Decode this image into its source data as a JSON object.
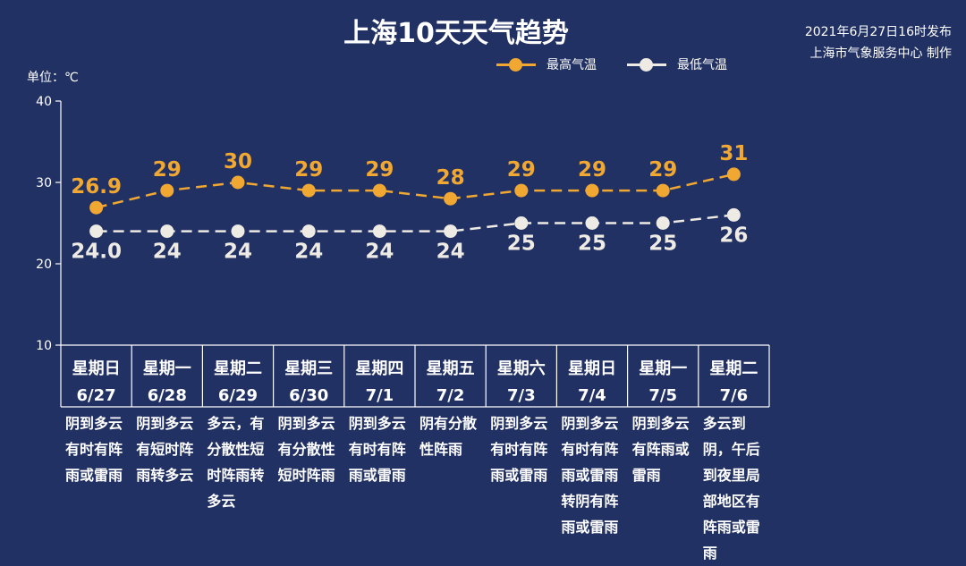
{
  "title": "上海10天天气趋势",
  "issue_time": "2021年6月27日16时发布",
  "issuer": "上海市气象服务中心 制作",
  "unit_label": "单位：℃",
  "colors": {
    "background": "#223163",
    "high": "#f0a832",
    "low": "#eeeae4",
    "axis": "#ffffff"
  },
  "days": [
    {
      "weekday": "星期日",
      "date": "6/27",
      "desc": "阴到多云有时有阵雨或雷雨"
    },
    {
      "weekday": "星期一",
      "date": "6/28",
      "desc": "阴到多云有短时阵雨转多云"
    },
    {
      "weekday": "星期二",
      "date": "6/29",
      "desc": "多云，有分散性短时阵雨转多云"
    },
    {
      "weekday": "星期三",
      "date": "6/30",
      "desc": "阴到多云有分散性短时阵雨"
    },
    {
      "weekday": "星期四",
      "date": "7/1",
      "desc": "阴到多云有时有阵雨或雷雨"
    },
    {
      "weekday": "星期五",
      "date": "7/2",
      "desc": "阴有分散性阵雨"
    },
    {
      "weekday": "星期六",
      "date": "7/3",
      "desc": "阴到多云有时有阵雨或雷雨"
    },
    {
      "weekday": "星期日",
      "date": "7/4",
      "desc": "阴到多云有时有阵雨或雷雨转阴有阵雨或雷雨"
    },
    {
      "weekday": "星期一",
      "date": "7/5",
      "desc": "阴到多云有阵雨或雷雨"
    },
    {
      "weekday": "星期二",
      "date": "7/6",
      "desc": "多云到阴，午后到夜里局部地区有阵雨或雷雨"
    }
  ],
  "chart_data": {
    "type": "line",
    "categories": [
      "6/27",
      "6/28",
      "6/29",
      "6/30",
      "7/1",
      "7/2",
      "7/3",
      "7/4",
      "7/5",
      "7/6"
    ],
    "series": [
      {
        "name": "最高气温",
        "values": [
          26.9,
          29,
          30,
          29,
          29,
          28,
          29,
          29,
          29,
          31
        ],
        "labels": [
          "26.9",
          "29",
          "30",
          "29",
          "29",
          "28",
          "29",
          "29",
          "29",
          "31"
        ]
      },
      {
        "name": "最低气温",
        "values": [
          24.0,
          24,
          24,
          24,
          24,
          24,
          25,
          25,
          25,
          26
        ],
        "labels": [
          "24.0",
          "24",
          "24",
          "24",
          "24",
          "24",
          "25",
          "25",
          "25",
          "26"
        ]
      }
    ],
    "ylim": [
      10,
      40
    ],
    "yticks": [
      "10",
      "20",
      "30",
      "40"
    ],
    "grid": false,
    "legend_position": "top"
  }
}
